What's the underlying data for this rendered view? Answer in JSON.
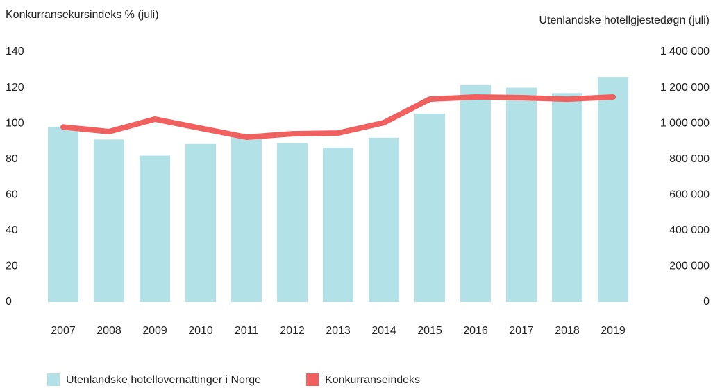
{
  "chart_data": {
    "type": "bar",
    "ylabel": "Konkurransekursindeks % (juli)",
    "y2label": "Utenlandske hotellgjestedøgn (juli)",
    "categories": [
      "2007",
      "2008",
      "2009",
      "2010",
      "2011",
      "2012",
      "2013",
      "2014",
      "2015",
      "2016",
      "2017",
      "2018",
      "2019"
    ],
    "series": [
      {
        "name": "Utenlandske hotellovernattinger i Norge",
        "type": "bar",
        "axis": "y2",
        "color": "#b2e1e8",
        "values": [
          980000,
          910000,
          820000,
          885000,
          925000,
          890000,
          865000,
          920000,
          1055000,
          1215000,
          1200000,
          1170000,
          1260000
        ]
      },
      {
        "name": "Konkurranseindeks",
        "type": "line",
        "axis": "y",
        "color": "#f0605e",
        "values": [
          98,
          95.4,
          102.4,
          97.3,
          92.3,
          94.2,
          94.6,
          100.4,
          113.6,
          114.8,
          114.4,
          113.6,
          114.8
        ]
      }
    ],
    "ylim": [
      0,
      140
    ],
    "yticks": [
      0,
      20,
      40,
      60,
      80,
      100,
      120,
      140
    ],
    "y2lim": [
      0,
      1400000
    ],
    "y2ticks": [
      0,
      {
        "value": 200000,
        "label": "200 000"
      },
      {
        "value": 400000,
        "label": "400 000"
      },
      {
        "value": 600000,
        "label": "600 000"
      },
      {
        "value": 800000,
        "label": "800 000"
      },
      {
        "value": 1000000,
        "label": "1 000 000"
      },
      {
        "value": 1200000,
        "label": "1 200 000"
      },
      {
        "value": 1400000,
        "label": "1 400 000"
      }
    ],
    "grid": false,
    "legend": "bottom"
  }
}
